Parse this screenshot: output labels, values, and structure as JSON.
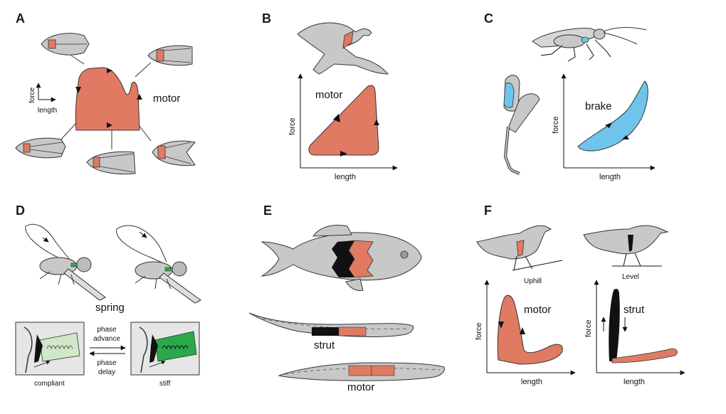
{
  "panels": {
    "a": {
      "letter": "A",
      "axis_force": "force",
      "axis_length": "length",
      "loop_label": "motor"
    },
    "b": {
      "letter": "B",
      "loop_label": "motor",
      "axis_force": "force",
      "axis_length": "length"
    },
    "c": {
      "letter": "C",
      "loop_label": "brake",
      "axis_force": "force",
      "axis_length": "length"
    },
    "d": {
      "letter": "D",
      "spring_label": "spring",
      "phase_advance": [
        "phase",
        "advance"
      ],
      "phase_delay": [
        "phase",
        "delay"
      ],
      "left_caption": "compliant",
      "right_caption": "stiff"
    },
    "e": {
      "letter": "E",
      "strut_label": "strut",
      "motor_label": "motor"
    },
    "f": {
      "letter": "F",
      "uphill_label": "Uphill",
      "level_label": "Level",
      "left_loop_label": "motor",
      "right_loop_label": "strut",
      "axis_force": "force",
      "axis_length": "length"
    }
  },
  "colors": {
    "muscle_red": "#e07a63",
    "brake_blue": "#6ec4ea",
    "strut_black": "#111111",
    "spring_green": "#2aa84a",
    "spring_light": "#cfe8c8",
    "body_gray": "#c8c8c8",
    "outline": "#333333",
    "box_gray": "#e6e6e6"
  }
}
